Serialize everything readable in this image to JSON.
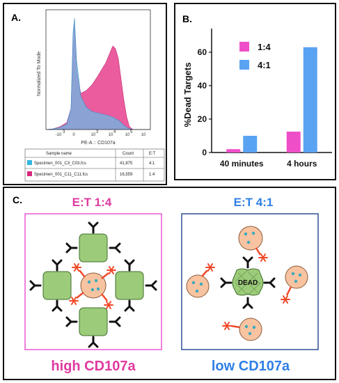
{
  "panel_a": {
    "label": "A.",
    "y_axis_label": "Normalized To Mode",
    "x_axis_label": "PE-A :: CD107a",
    "x_ticks": [
      "-10",
      "0",
      "10",
      "10",
      "10",
      "10"
    ],
    "x_tick_exps": [
      "3",
      "",
      "3",
      "4",
      "5",
      ""
    ],
    "table": {
      "headers": [
        "Sample name",
        "Count",
        "E:T"
      ],
      "rows": [
        {
          "name": "Specimen_001_C3_C03.fcs",
          "count": "41,875",
          "et": "4:1",
          "color": "#34b7e0"
        },
        {
          "name": "Specimen_001_C11_C11.fcs",
          "count": "16,559",
          "et": "1:4",
          "color": "#d6287a"
        }
      ]
    },
    "colors": {
      "high_fill": "#e84a93",
      "low_fill": "#6fb6e4",
      "overlap": "#9a88c4"
    }
  },
  "panel_b": {
    "label": "B.",
    "chart_data": {
      "type": "bar",
      "categories": [
        "40 minutes",
        "4 hours"
      ],
      "series": [
        {
          "name": "1:4",
          "values": [
            2,
            12.5
          ],
          "color": "#ee4fc9"
        },
        {
          "name": "4:1",
          "values": [
            10,
            63
          ],
          "color": "#5aa3f2"
        }
      ],
      "ylabel": "%Dead Targets",
      "xlabel": "",
      "ylim": [
        0,
        70
      ],
      "yticks": [
        "0",
        "20",
        "40",
        "60"
      ],
      "legend": "top-left",
      "grid": false
    }
  },
  "panel_c": {
    "label": "C.",
    "left": {
      "title": "E:T 1:4",
      "footer": "high CD107a",
      "color": "#e0399f",
      "box_color": "#ee55d2"
    },
    "right": {
      "title": "E:T 4:1",
      "footer": "low CD107a",
      "color": "#2f7fe6",
      "box_color": "#2f4f95"
    },
    "dead_label": "DEAD",
    "colors": {
      "target_cell": "#9ccb7a",
      "nk_cell": "#f7c3a0",
      "granule": "#3aaabf",
      "cd107a": "#f04a2a"
    }
  }
}
